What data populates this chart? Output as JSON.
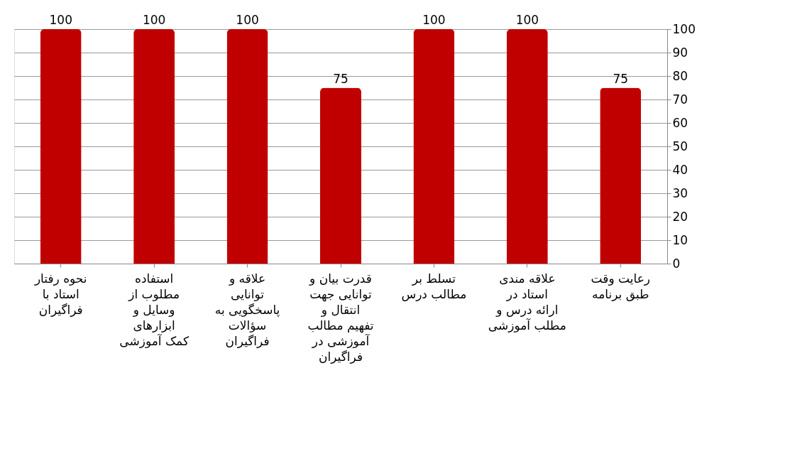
{
  "chart_data": {
    "type": "bar",
    "categories": [
      "نحوه رفتار استاد با فراگیران",
      "استفاده مطلوب از وسایل و ابزارهای کمک آموزشی",
      "علاقه و توانایی پاسخگویی به سؤالات فراگیران",
      "قدرت بیان و توانایی جهت انتقال و تفهیم مطالب آموزشی در فراگیران",
      "تسلط بر مطالب درس",
      "علاقه مندی استاد در ارائه درس و مطلب آموزشی",
      "رعایت وقت طبق برنامه"
    ],
    "values": [
      100,
      100,
      100,
      75,
      100,
      100,
      75
    ],
    "color": "#c00000",
    "ylim": [
      0,
      100
    ],
    "yticks": [
      0,
      10,
      20,
      30,
      40,
      50,
      60,
      70,
      80,
      90,
      100
    ],
    "grid": "y",
    "data_labels": true
  }
}
